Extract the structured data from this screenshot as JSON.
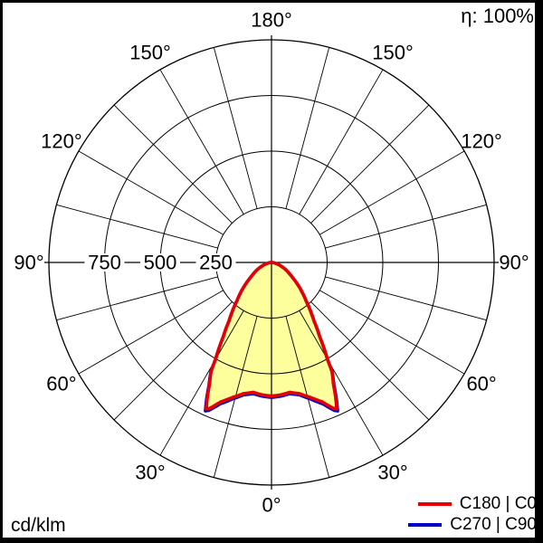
{
  "header": {
    "efficiency_label": "η: 100%"
  },
  "footer": {
    "unit_label": "cd/klm"
  },
  "legend": {
    "items": [
      {
        "label": "C180 | C0",
        "color": "#e60000"
      },
      {
        "label": "C270 | C90",
        "color": "#0000c8"
      }
    ]
  },
  "chart_data": {
    "type": "polar_photometric",
    "unit": "cd/klm",
    "efficiency_percent": 100,
    "max_value": 1000,
    "rings": [
      250,
      500,
      750,
      1000
    ],
    "ring_axis_labels": [
      "750",
      "500",
      "250"
    ],
    "angle_labels_deg": [
      0,
      30,
      60,
      90,
      120,
      150,
      180
    ],
    "grid_angle_step_deg": 15,
    "fill_color": "#fdff9c",
    "series": [
      {
        "name": "C180 | C0",
        "color": "#e60000",
        "symmetric": true,
        "points_deg_cd": [
          [
            0,
            600
          ],
          [
            4,
            596
          ],
          [
            8,
            589
          ],
          [
            12,
            602
          ],
          [
            16,
            630
          ],
          [
            20,
            666
          ],
          [
            23,
            712
          ],
          [
            24,
            720
          ],
          [
            25.5,
            668
          ],
          [
            27,
            612
          ],
          [
            29,
            560
          ],
          [
            30,
            503
          ],
          [
            33,
            398
          ],
          [
            36,
            325
          ],
          [
            38,
            292
          ],
          [
            42,
            232
          ],
          [
            46,
            190
          ],
          [
            50,
            152
          ],
          [
            54,
            119
          ],
          [
            58,
            95
          ],
          [
            63,
            72
          ],
          [
            68,
            50
          ],
          [
            73,
            33
          ],
          [
            78,
            18
          ],
          [
            84,
            6
          ],
          [
            90,
            0
          ]
        ]
      },
      {
        "name": "C270 | C90",
        "color": "#0000c8",
        "symmetric": true,
        "points_deg_cd": [
          [
            0,
            606
          ],
          [
            4,
            602
          ],
          [
            8,
            595
          ],
          [
            12,
            608
          ],
          [
            16,
            638
          ],
          [
            20,
            676
          ],
          [
            23,
            722
          ],
          [
            24,
            730
          ],
          [
            25.5,
            676
          ],
          [
            27,
            618
          ],
          [
            29,
            562
          ],
          [
            30,
            503
          ],
          [
            33,
            398
          ],
          [
            36,
            325
          ],
          [
            38,
            292
          ],
          [
            42,
            232
          ],
          [
            46,
            190
          ],
          [
            50,
            152
          ],
          [
            54,
            119
          ],
          [
            58,
            95
          ],
          [
            63,
            72
          ],
          [
            68,
            50
          ],
          [
            73,
            33
          ],
          [
            78,
            18
          ],
          [
            84,
            6
          ],
          [
            90,
            0
          ]
        ]
      }
    ]
  }
}
